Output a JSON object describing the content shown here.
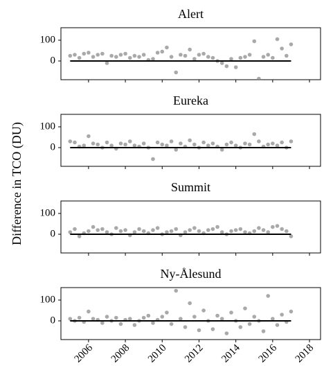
{
  "ylabel": "Difference in TCO (DU)",
  "chart_data": [
    {
      "type": "scatter",
      "title": "Alert",
      "color": "#8c8c8c",
      "x": [
        2005,
        2005.25,
        2005.5,
        2005.75,
        2006,
        2006.25,
        2006.5,
        2006.75,
        2007,
        2007.25,
        2007.5,
        2007.75,
        2008,
        2008.25,
        2008.5,
        2008.75,
        2009,
        2009.25,
        2009.5,
        2009.75,
        2010,
        2010.25,
        2010.5,
        2010.75,
        2011,
        2011.25,
        2011.5,
        2011.75,
        2012,
        2012.25,
        2012.5,
        2012.75,
        2013,
        2013.25,
        2013.5,
        2013.75,
        2014,
        2014.25,
        2014.5,
        2014.75,
        2015,
        2015.25,
        2015.5,
        2015.75,
        2016,
        2016.25,
        2016.5,
        2016.75,
        2017
      ],
      "values": [
        25,
        30,
        15,
        35,
        40,
        20,
        30,
        35,
        -10,
        25,
        20,
        30,
        35,
        15,
        25,
        20,
        30,
        5,
        10,
        40,
        45,
        65,
        20,
        -55,
        30,
        25,
        55,
        10,
        30,
        35,
        20,
        15,
        0,
        -10,
        -25,
        10,
        -30,
        15,
        20,
        30,
        95,
        -85,
        20,
        30,
        15,
        105,
        60,
        25,
        80
      ],
      "zero_line": {
        "y": 0,
        "x": [
          2005,
          2017
        ]
      },
      "xlim": [
        2004.5,
        2018.6
      ],
      "xticks": [
        2006,
        2008,
        2010,
        2012,
        2014,
        2016,
        2018
      ],
      "show_xtick_labels": false,
      "ylim": [
        -90,
        160
      ],
      "yticks": [
        0,
        100
      ]
    },
    {
      "type": "scatter",
      "title": "Eureka",
      "color": "#8c8c8c",
      "x": [
        2005,
        2005.25,
        2005.5,
        2005.75,
        2006,
        2006.25,
        2006.5,
        2006.75,
        2007,
        2007.25,
        2007.5,
        2007.75,
        2008,
        2008.25,
        2008.5,
        2008.75,
        2009,
        2009.25,
        2009.5,
        2009.75,
        2010,
        2010.25,
        2010.5,
        2010.75,
        2011,
        2011.25,
        2011.5,
        2011.75,
        2012,
        2012.25,
        2012.5,
        2012.75,
        2013,
        2013.25,
        2013.5,
        2013.75,
        2014,
        2014.25,
        2014.5,
        2014.75,
        2015,
        2015.25,
        2015.5,
        2015.75,
        2016,
        2016.25,
        2016.5,
        2016.75,
        2017
      ],
      "values": [
        30,
        25,
        5,
        10,
        55,
        20,
        15,
        0,
        25,
        10,
        -5,
        20,
        15,
        30,
        10,
        5,
        20,
        0,
        -55,
        25,
        15,
        10,
        30,
        -10,
        20,
        5,
        35,
        15,
        0,
        25,
        10,
        20,
        5,
        -10,
        15,
        25,
        10,
        0,
        20,
        15,
        65,
        30,
        5,
        15,
        20,
        10,
        25,
        0,
        30
      ],
      "zero_line": {
        "y": 0,
        "x": [
          2005,
          2017
        ]
      },
      "xlim": [
        2004.5,
        2018.6
      ],
      "xticks": [
        2006,
        2008,
        2010,
        2012,
        2014,
        2016,
        2018
      ],
      "show_xtick_labels": false,
      "ylim": [
        -90,
        160
      ],
      "yticks": [
        0,
        100
      ]
    },
    {
      "type": "scatter",
      "title": "Summit",
      "color": "#8c8c8c",
      "x": [
        2005,
        2005.25,
        2005.5,
        2005.75,
        2006,
        2006.25,
        2006.5,
        2006.75,
        2007,
        2007.25,
        2007.5,
        2007.75,
        2008,
        2008.25,
        2008.5,
        2008.75,
        2009,
        2009.25,
        2009.5,
        2009.75,
        2010,
        2010.25,
        2010.5,
        2010.75,
        2011,
        2011.25,
        2011.5,
        2011.75,
        2012,
        2012.25,
        2012.5,
        2012.75,
        2013,
        2013.25,
        2013.5,
        2013.75,
        2014,
        2014.25,
        2014.5,
        2014.75,
        2015,
        2015.25,
        2015.5,
        2015.75,
        2016,
        2016.25,
        2016.5,
        2016.75,
        2017
      ],
      "values": [
        10,
        25,
        -10,
        5,
        15,
        35,
        20,
        25,
        10,
        0,
        30,
        15,
        20,
        -5,
        10,
        25,
        15,
        5,
        20,
        30,
        0,
        10,
        15,
        25,
        -5,
        10,
        20,
        30,
        15,
        5,
        20,
        25,
        35,
        10,
        0,
        15,
        20,
        25,
        10,
        5,
        15,
        30,
        20,
        10,
        35,
        40,
        25,
        15,
        -10
      ],
      "zero_line": {
        "y": 0,
        "x": [
          2005,
          2017
        ]
      },
      "xlim": [
        2004.5,
        2018.6
      ],
      "xticks": [
        2006,
        2008,
        2010,
        2012,
        2014,
        2016,
        2018
      ],
      "show_xtick_labels": false,
      "ylim": [
        -90,
        160
      ],
      "yticks": [
        0,
        100
      ]
    },
    {
      "type": "scatter",
      "title": "Ny-Ålesund",
      "color": "#8c8c8c",
      "x": [
        2005,
        2005.25,
        2005.5,
        2005.75,
        2006,
        2006.25,
        2006.5,
        2006.75,
        2007,
        2007.25,
        2007.5,
        2007.75,
        2008,
        2008.25,
        2008.5,
        2008.75,
        2009,
        2009.25,
        2009.5,
        2009.75,
        2010,
        2010.25,
        2010.5,
        2010.75,
        2011,
        2011.25,
        2011.5,
        2011.75,
        2012,
        2012.25,
        2012.5,
        2012.75,
        2013,
        2013.25,
        2013.5,
        2013.75,
        2014,
        2014.25,
        2014.5,
        2014.75,
        2015,
        2015.25,
        2015.5,
        2015.75,
        2016,
        2016.25,
        2016.5,
        2016.75,
        2017
      ],
      "values": [
        10,
        0,
        15,
        -5,
        45,
        10,
        5,
        -10,
        20,
        0,
        15,
        -15,
        5,
        10,
        -20,
        0,
        15,
        25,
        -10,
        5,
        20,
        40,
        -15,
        145,
        10,
        -30,
        85,
        20,
        -45,
        50,
        0,
        -40,
        25,
        10,
        -60,
        40,
        0,
        -30,
        60,
        -15,
        20,
        0,
        -50,
        120,
        10,
        -20,
        30,
        -5,
        45
      ],
      "zero_line": {
        "y": 0,
        "x": [
          2005,
          2017
        ]
      },
      "xlim": [
        2004.5,
        2018.6
      ],
      "xticks": [
        2006,
        2008,
        2010,
        2012,
        2014,
        2016,
        2018
      ],
      "show_xtick_labels": true,
      "ylim": [
        -90,
        160
      ],
      "yticks": [
        0,
        100
      ]
    }
  ]
}
